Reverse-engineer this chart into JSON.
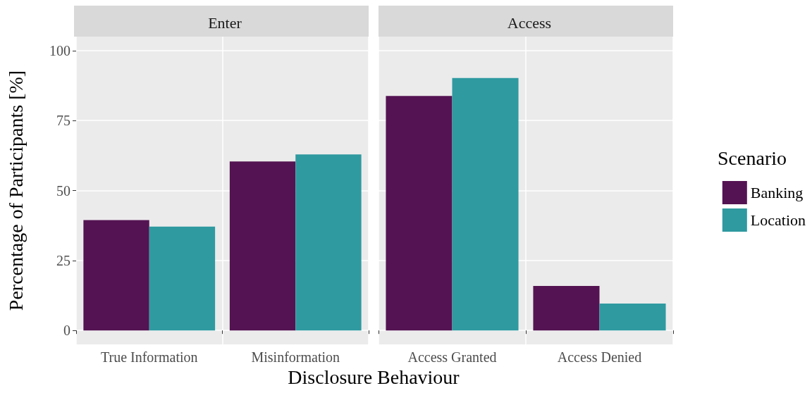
{
  "chart_data": [
    {
      "type": "bar",
      "title": "Enter",
      "xlabel": "Disclosure Behaviour",
      "ylabel": "Percentage of Participants [%]",
      "categories": [
        "True Information",
        "Misinformation"
      ],
      "series": [
        {
          "color": "#541352",
          "values": [
            39.4,
            60.4
          ]
        },
        {
          "color": "#2f9aa0",
          "values": [
            37.1,
            62.9
          ]
        }
      ],
      "ylim": [
        -5,
        105
      ],
      "yticks": [
        0,
        25,
        50,
        75,
        100
      ],
      "grid": true
    },
    {
      "type": "bar",
      "title": "Access",
      "legend_title": "Scenario",
      "legend": "right",
      "categories": [
        "Access Granted",
        "Access Denied"
      ],
      "series": [
        {
          "name": "Banking",
          "color": "#541352",
          "values": [
            83.8,
            15.9
          ]
        },
        {
          "name": "Location",
          "color": "#2f9aa0",
          "values": [
            90.2,
            9.6
          ]
        }
      ],
      "ylim": [
        -5,
        105
      ],
      "yticks": [
        0,
        25,
        50,
        75,
        100
      ],
      "grid": true,
      "tick_labels": "x"
    }
  ]
}
